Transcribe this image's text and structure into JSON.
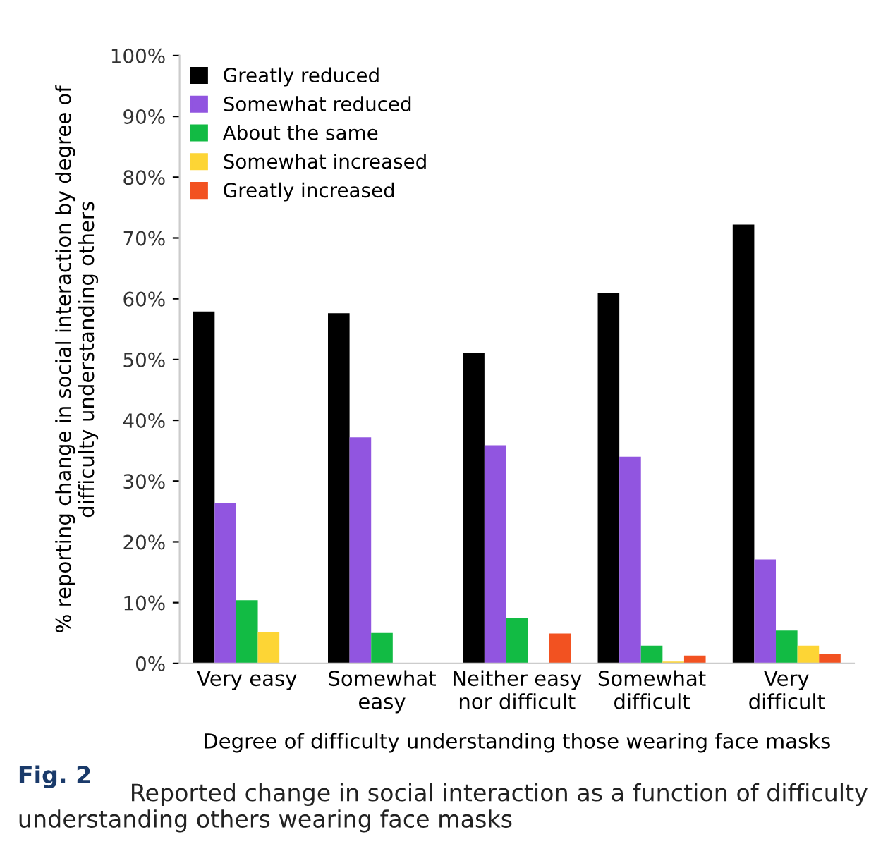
{
  "chart_data": {
    "type": "bar",
    "categories": [
      "Very easy",
      "Somewhat\neasy",
      "Neither easy\nnor difficult",
      "Somewhat\ndifficult",
      "Very\ndifficult"
    ],
    "series": [
      {
        "name": "Greatly reduced",
        "color": "#000000",
        "values": [
          57.9,
          57.6,
          51.1,
          61.0,
          72.2
        ]
      },
      {
        "name": "Somewhat reduced",
        "color": "#9155e0",
        "values": [
          26.4,
          37.2,
          35.9,
          34.0,
          17.1
        ]
      },
      {
        "name": "About the same",
        "color": "#12bb44",
        "values": [
          10.4,
          5.0,
          7.4,
          2.9,
          5.4
        ]
      },
      {
        "name": "Somewhat increased",
        "color": "#fdd535",
        "values": [
          5.1,
          0,
          0,
          0.3,
          2.9
        ]
      },
      {
        "name": "Greatly increased",
        "color": "#f25221",
        "values": [
          0,
          0,
          4.9,
          1.3,
          1.5
        ]
      }
    ],
    "xlabel": "Degree of difficulty understanding those wearing face masks",
    "ylabel": "% reporting change in social interaction by degree of\ndifficulty understanding others",
    "ylim": [
      0,
      100
    ],
    "yticks": [
      {
        "value": 0,
        "label": "0%"
      },
      {
        "value": 10,
        "label": "10%"
      },
      {
        "value": 20,
        "label": "20%"
      },
      {
        "value": 30,
        "label": "30%"
      },
      {
        "value": 40,
        "label": "40%"
      },
      {
        "value": 50,
        "label": "50%"
      },
      {
        "value": 60,
        "label": "60%"
      },
      {
        "value": 70,
        "label": "70%"
      },
      {
        "value": 80,
        "label": "80%"
      },
      {
        "value": 90,
        "label": "90%"
      },
      {
        "value": 100,
        "label": "100%"
      }
    ],
    "grid": false,
    "legend": "top left",
    "annotations": [
      "Fig. 2",
      "Reported change in social interaction as a function of difficulty understanding others wearing face masks"
    ]
  }
}
